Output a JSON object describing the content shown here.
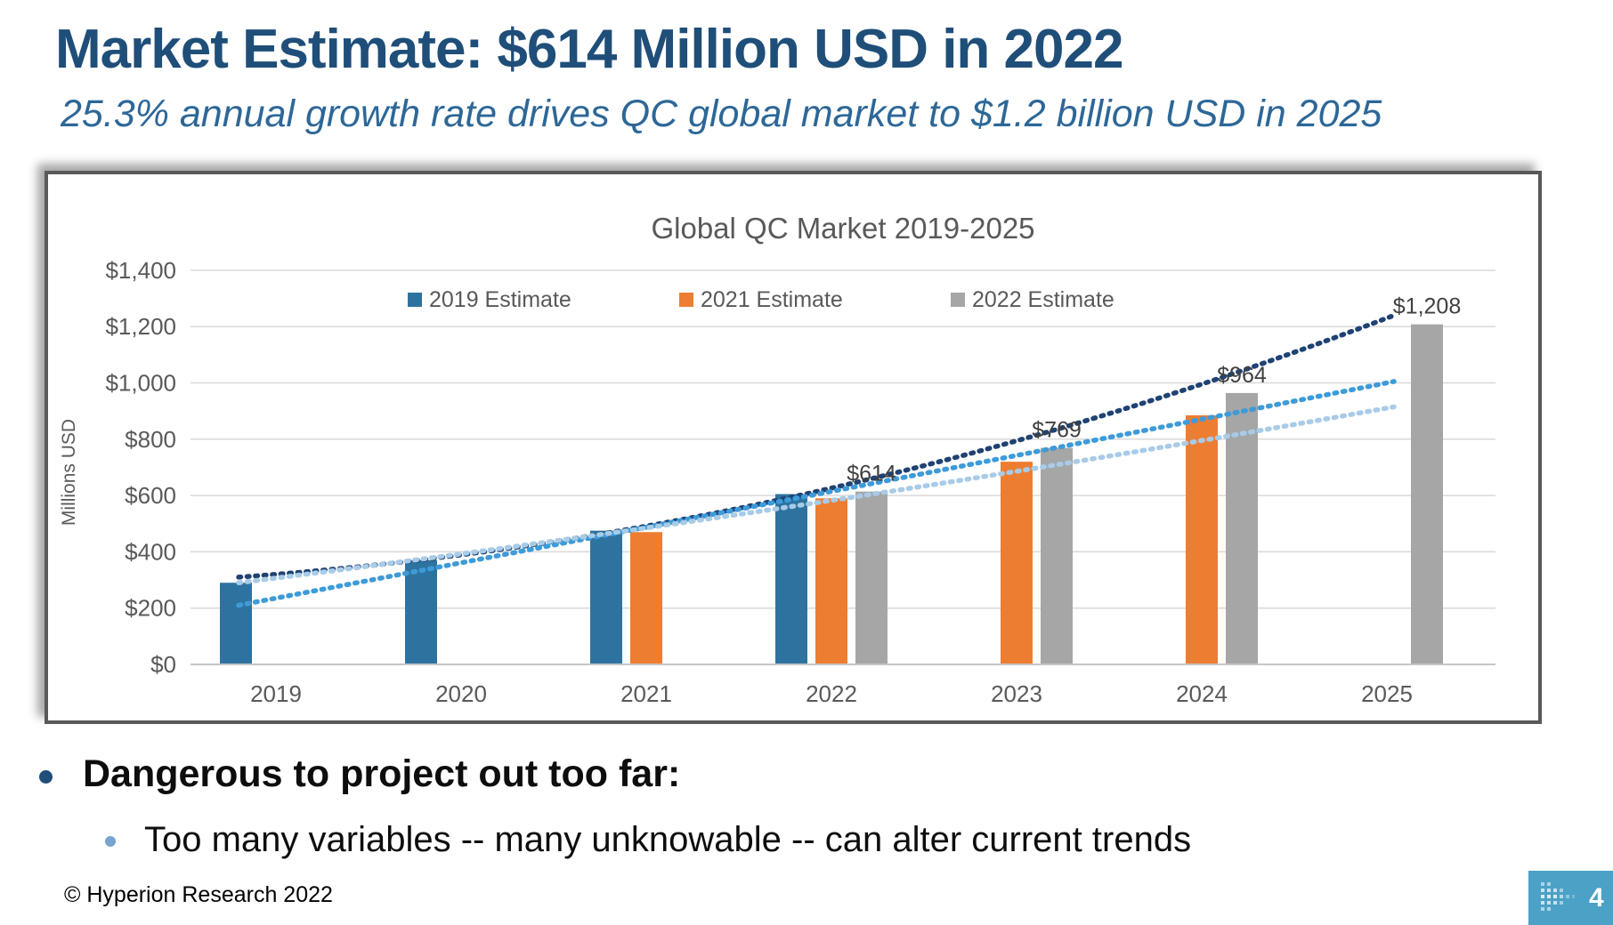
{
  "slide": {
    "title": "Market Estimate: $614 Million USD in 2022",
    "subtitle": "25.3% annual growth rate drives QC global market to $1.2 billion USD in 2025"
  },
  "bullets": {
    "main": "Dangerous to project out too far:",
    "sub": "Too many variables -- many unknowable -- can alter current trends"
  },
  "footer": {
    "copyright": "© Hyperion Research 2022",
    "page_number": "4"
  },
  "colors": {
    "title_blue": "#1F4E79",
    "subtitle_blue": "#2D6797",
    "bar_blue": "#2E739F",
    "bar_orange": "#ED7D31",
    "bar_gray": "#A6A6A6",
    "axis_text": "#595959",
    "gridline": "#D9D9D9",
    "data_label": "#404040",
    "badge_blue": "#4BA1C6"
  },
  "chart_data": {
    "type": "bar",
    "title": "Global QC Market 2019-2025",
    "ylabel": "Millions USD",
    "xlabel": "",
    "ylim": [
      0,
      1400
    ],
    "grid": true,
    "legend_position": "top",
    "y_tick_labels": [
      "$1,400",
      "$1,200",
      "$1,000",
      "$800",
      "$600",
      "$400",
      "$200",
      "$0"
    ],
    "categories": [
      "2019",
      "2020",
      "2021",
      "2022",
      "2023",
      "2024",
      "2025"
    ],
    "series": [
      {
        "name": "2019 Estimate",
        "color": "#2E739F",
        "values": [
          290,
          370,
          475,
          605,
          null,
          null,
          null
        ],
        "labels": [
          null,
          null,
          null,
          null,
          null,
          null,
          null
        ]
      },
      {
        "name": "2021 Estimate",
        "color": "#ED7D31",
        "values": [
          null,
          null,
          470,
          590,
          720,
          885,
          null
        ],
        "labels": [
          null,
          null,
          null,
          null,
          null,
          null,
          null
        ]
      },
      {
        "name": "2022 Estimate",
        "color": "#A6A6A6",
        "values": [
          null,
          null,
          null,
          614,
          769,
          964,
          1208
        ],
        "labels": [
          null,
          null,
          null,
          "$614",
          "$769",
          "$964",
          "$1,208"
        ]
      }
    ],
    "trendlines": [
      {
        "name": "trendline-dark-navy",
        "color": "#1F4273",
        "values_2019_2022_2025": [
          310,
          615,
          1240
        ]
      },
      {
        "name": "trendline-sky-blue",
        "color": "#3D9BD9",
        "values_2019_2022_2025": [
          210,
          605,
          1005
        ]
      },
      {
        "name": "trendline-pale-blue",
        "color": "#A8CBE8",
        "values_2019_2022_2025": [
          290,
          575,
          915
        ]
      }
    ]
  }
}
